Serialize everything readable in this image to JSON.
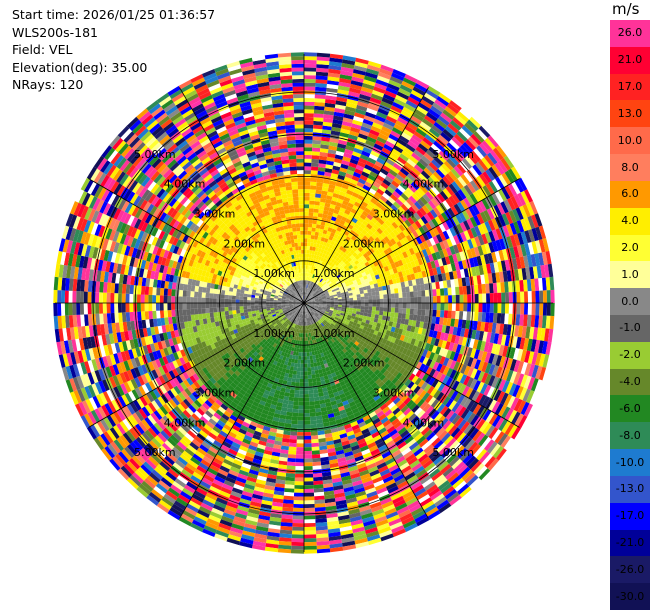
{
  "info": {
    "start_time": "Start time: 2026/01/25 01:36:57",
    "instrument": "WLS200s-181",
    "field": "Field: VEL",
    "elevation": "Elevation(deg): 35.00",
    "nrays": "NRays: 120"
  },
  "colorbar": {
    "unit": "m/s",
    "levels": [
      {
        "label": "26.0",
        "color": "#ff3399"
      },
      {
        "label": "21.0",
        "color": "#ff0033"
      },
      {
        "label": "17.0",
        "color": "#ff2222"
      },
      {
        "label": "13.0",
        "color": "#ff4411"
      },
      {
        "label": "10.0",
        "color": "#ff6a4a"
      },
      {
        "label": "8.0",
        "color": "#ff7e5e"
      },
      {
        "label": "6.0",
        "color": "#ff9900"
      },
      {
        "label": "4.0",
        "color": "#ffee00"
      },
      {
        "label": "2.0",
        "color": "#ffff33"
      },
      {
        "label": "1.0",
        "color": "#ffff99"
      },
      {
        "label": "0.0",
        "color": "#888888"
      },
      {
        "label": "-1.0",
        "color": "#666666"
      },
      {
        "label": "-2.0",
        "color": "#99cc33"
      },
      {
        "label": "-4.0",
        "color": "#66882a"
      },
      {
        "label": "-6.0",
        "color": "#228822"
      },
      {
        "label": "-8.0",
        "color": "#2e8b57"
      },
      {
        "label": "-10.0",
        "color": "#1e7bd0"
      },
      {
        "label": "-13.0",
        "color": "#3355cc"
      },
      {
        "label": "-17.0",
        "color": "#0000ff"
      },
      {
        "label": "-21.0",
        "color": "#000099"
      },
      {
        "label": "-26.0",
        "color": "#1a1a66"
      },
      {
        "label": "-30.0",
        "color": "#111155"
      }
    ]
  },
  "ppi": {
    "rings": [
      {
        "label": "1.00km",
        "range_km": 1
      },
      {
        "label": "2.00km",
        "range_km": 2
      },
      {
        "label": "3.00km",
        "range_km": 3
      },
      {
        "label": "4.00km",
        "range_km": 4
      },
      {
        "label": "5.00km",
        "range_km": 5
      }
    ],
    "max_range_km": 5.9,
    "n_rays": 120
  }
}
